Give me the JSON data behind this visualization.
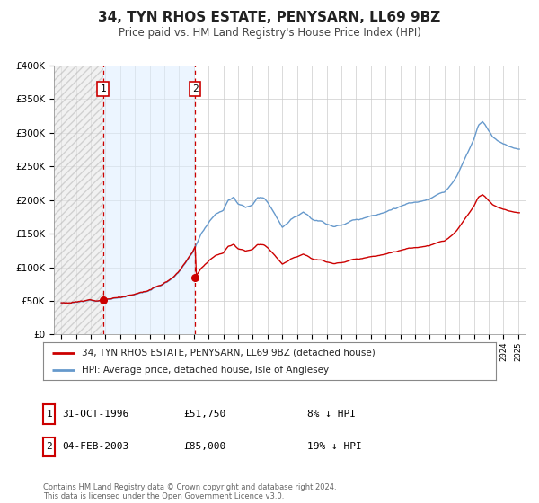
{
  "title": "34, TYN RHOS ESTATE, PENYSARN, LL69 9BZ",
  "subtitle": "Price paid vs. HM Land Registry's House Price Index (HPI)",
  "legend_property": "34, TYN RHOS ESTATE, PENYSARN, LL69 9BZ (detached house)",
  "legend_hpi": "HPI: Average price, detached house, Isle of Anglesey",
  "property_color": "#cc0000",
  "hpi_color": "#6699cc",
  "sale1_date": "31-OCT-1996",
  "sale1_price": 51750,
  "sale1_label": "8% ↓ HPI",
  "sale2_date": "04-FEB-2003",
  "sale2_price": 85000,
  "sale2_label": "19% ↓ HPI",
  "sale1_x": 1996.83,
  "sale2_x": 2003.09,
  "ylim": [
    0,
    400000
  ],
  "xlim": [
    1993.5,
    2025.5
  ],
  "background_color": "#ffffff",
  "grid_color": "#cccccc",
  "footnote": "Contains HM Land Registry data © Crown copyright and database right 2024.\nThis data is licensed under the Open Government Licence v3.0."
}
